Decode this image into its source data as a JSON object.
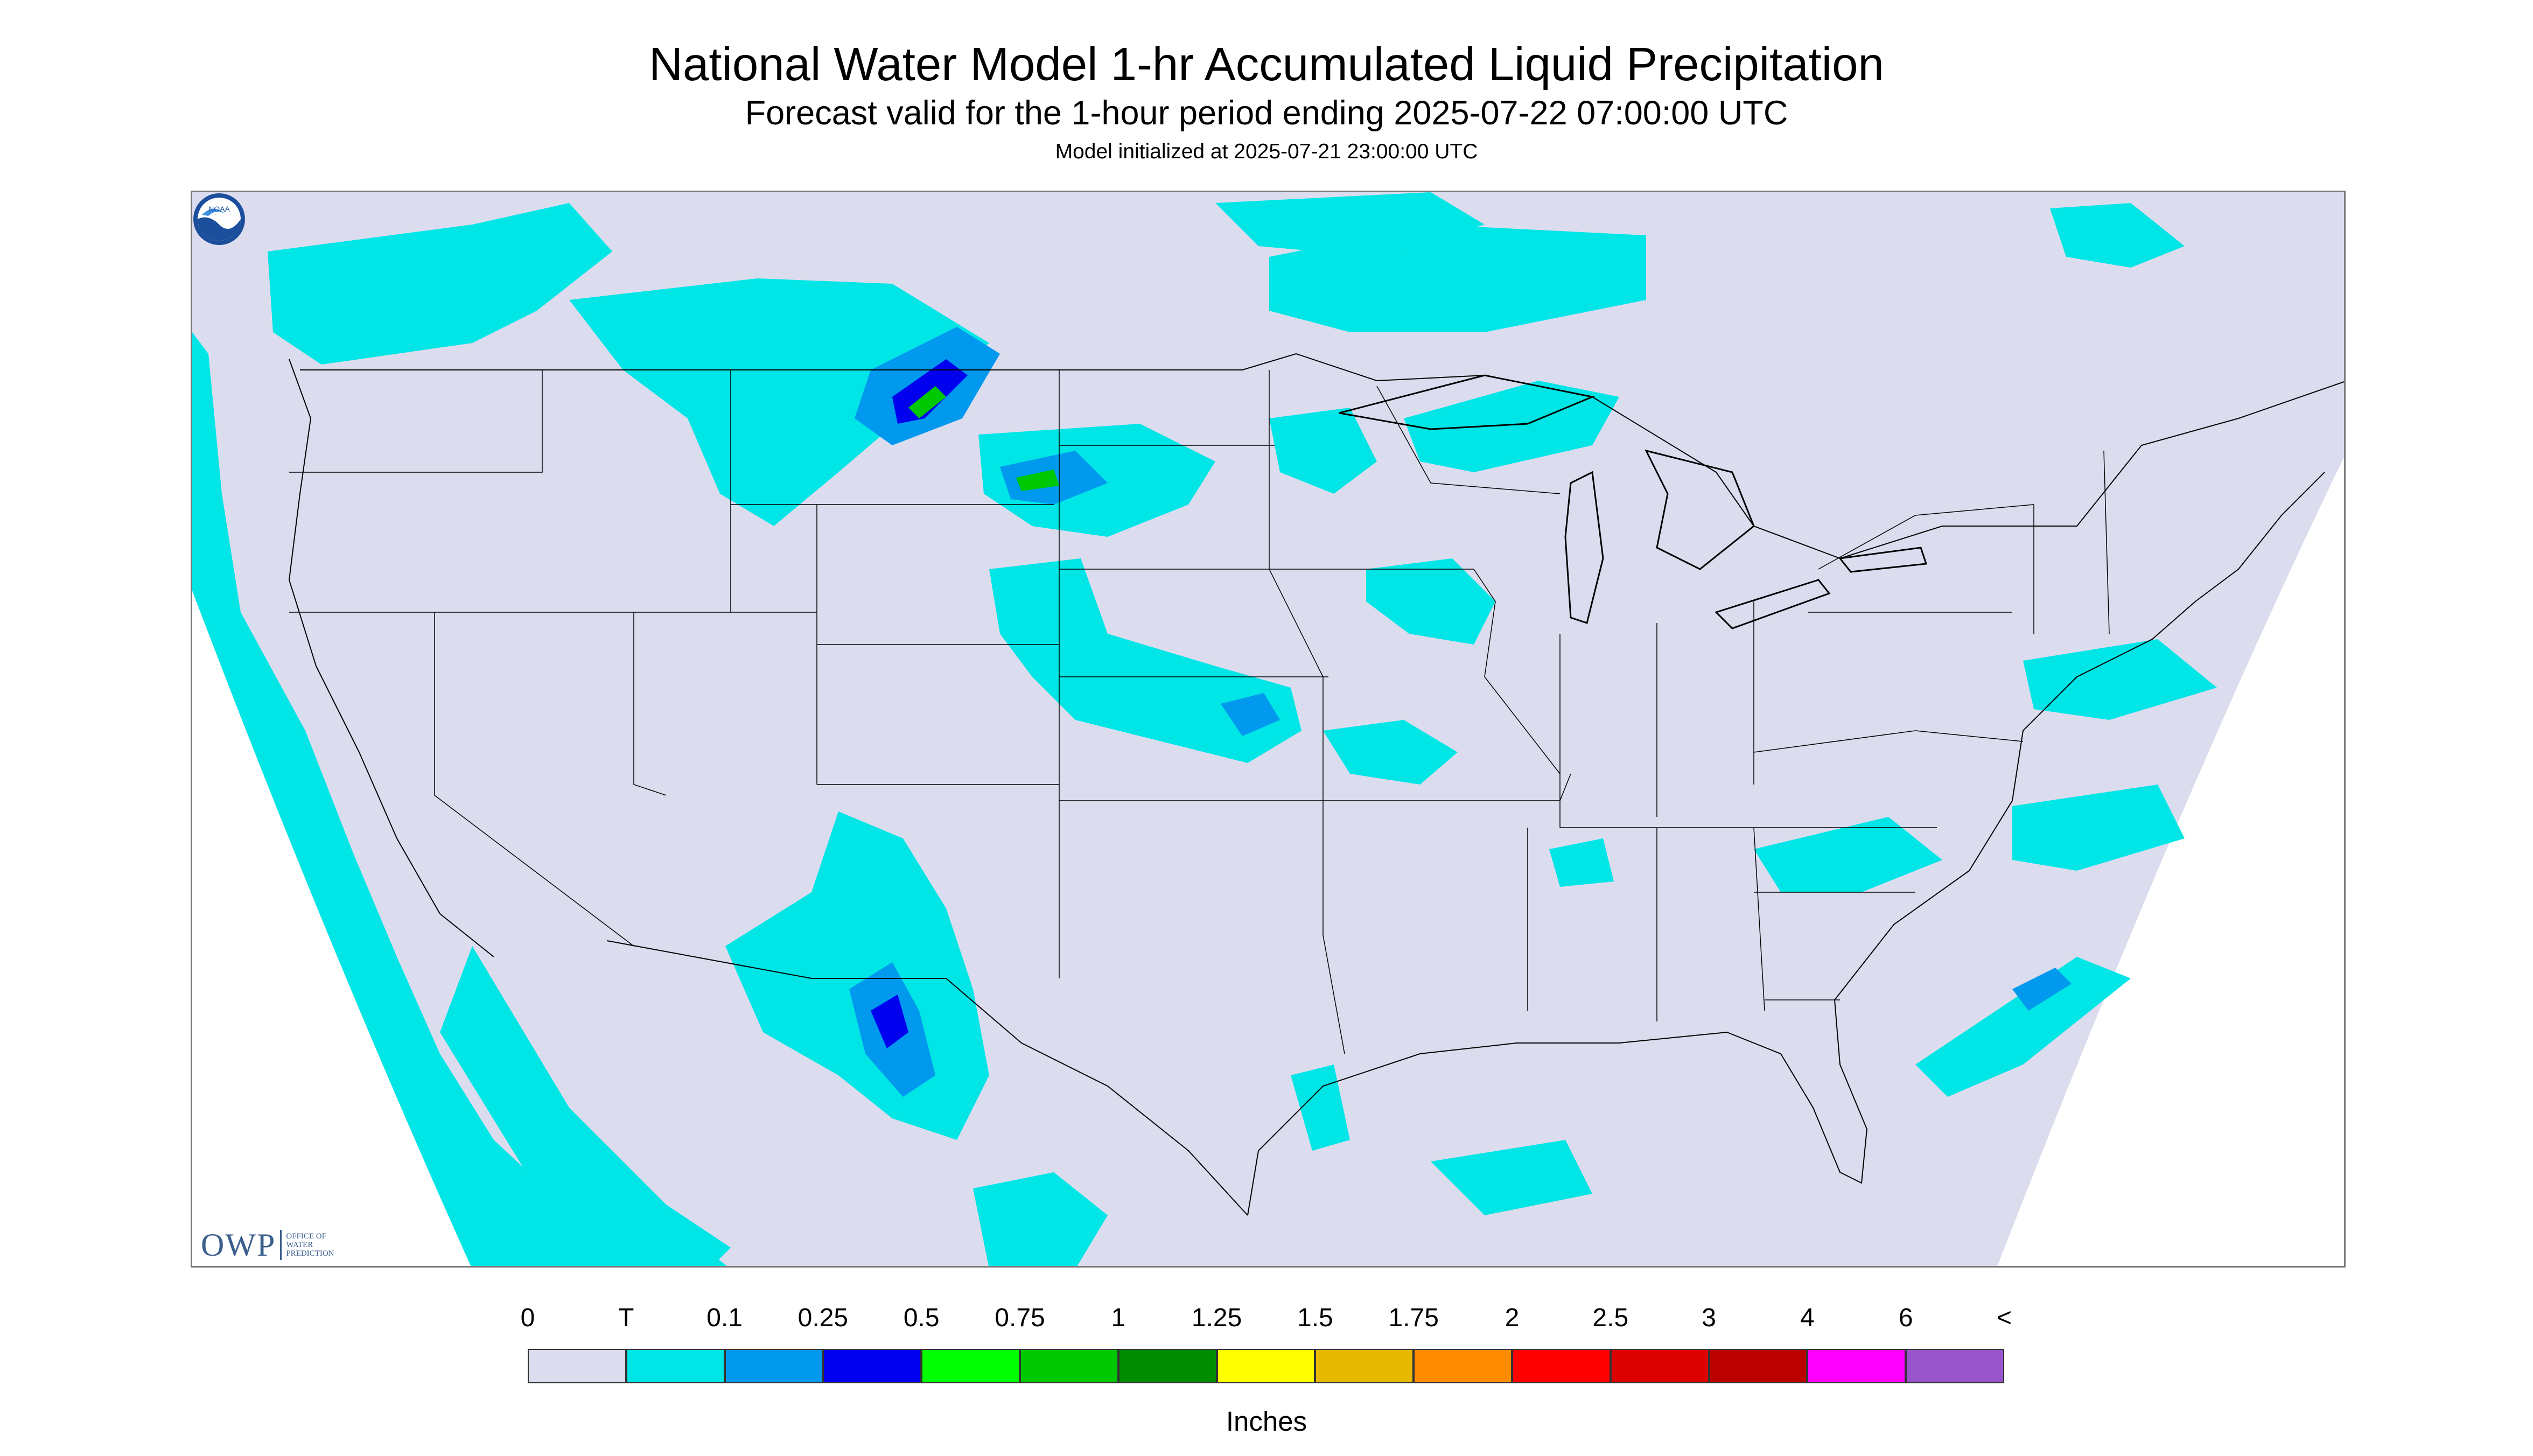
{
  "header": {
    "title": "National Water Model 1-hr Accumulated Liquid Precipitation",
    "subtitle": "Forecast valid for the 1-hour period ending 2025-07-22 07:00:00 UTC",
    "init_line": "Model initialized at 2025-07-21 23:00:00 UTC"
  },
  "logo": {
    "owp_acronym": "OWP",
    "owp_name_lines": [
      "OFFICE OF",
      "WATER",
      "PREDICTION"
    ],
    "noaa_text": "NOAA"
  },
  "legend": {
    "labels": [
      "0",
      "T",
      "0.1",
      "0.25",
      "0.5",
      "0.75",
      "1",
      "1.25",
      "1.5",
      "1.75",
      "2",
      "2.5",
      "3",
      "4",
      "6",
      "<"
    ],
    "colors": [
      "#dcdcef",
      "#00e5e5",
      "#0099ee",
      "#0000ee",
      "#00ff00",
      "#00c800",
      "#008c00",
      "#ffff00",
      "#e6b800",
      "#ff8c00",
      "#ff0000",
      "#dd0000",
      "#bb0000",
      "#ff00ff",
      "#9955cc"
    ],
    "units": "Inches"
  },
  "map": {
    "no_data_color": "#ffffff",
    "light_precip_color": "#00e5e5",
    "moderate_precip_color": "#0099ee",
    "heavy_precip_color": "#0000ee",
    "green_precip_color": "#00c800"
  }
}
